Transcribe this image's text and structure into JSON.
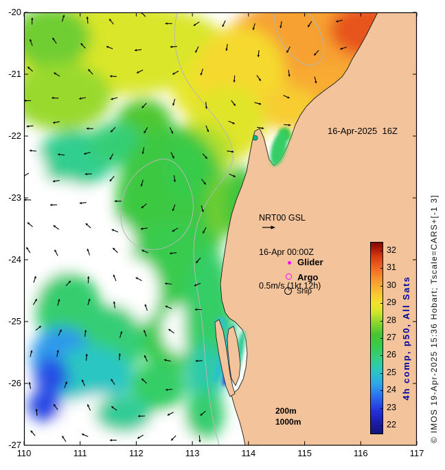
{
  "figure": {
    "land_color": "#f3c49b",
    "background_color": "#ffffff",
    "coast_color": "#1c1c1c",
    "contour_color": "#b6b6b6",
    "copyright": "© IMOS 19-Apr-2025 15:36 Hobart; Tscale=CARS+[-1 3]"
  },
  "annotations": {
    "datetime": "16-Apr-2025  16Z",
    "info": {
      "line1": "NRT00 GSL",
      "line2": "16-Apr 00:00Z",
      "line3": "0.5m/s (1kt 12h)"
    },
    "contour_labels": {
      "l200": "200m",
      "l1000": "1000m"
    }
  },
  "legend": {
    "items": [
      {
        "label": "Glider",
        "marker": "magenta-dot",
        "color": "#ff00ff"
      },
      {
        "label": "Argo",
        "marker": "magenta-open-circle",
        "color": "#ff00ff"
      },
      {
        "label": "Ship",
        "marker": "black-open-circle",
        "color": "#000000"
      }
    ]
  },
  "chart_data": {
    "type": "heatmap",
    "description": "Sea surface temperature (deg C) 4-hour composite map off Western Australia with surface current vectors, 200m/1000m bathymetry contours and observation platform legend",
    "x_range": [
      110,
      117
    ],
    "y_range": [
      -27,
      -20
    ],
    "x_ticks": [
      "110",
      "111",
      "112",
      "113",
      "114",
      "115",
      "116",
      "117"
    ],
    "y_ticks": [
      "-20",
      "-21",
      "-22",
      "-23",
      "-24",
      "-25",
      "-26",
      "-27"
    ],
    "grid": false,
    "colorbar": {
      "label": "4h comp, p50, All Sats",
      "label_color": "#0000a0",
      "ticks": [
        "32",
        "31",
        "30",
        "29",
        "28",
        "27",
        "26",
        "25",
        "24",
        "23",
        "22"
      ],
      "range": [
        21.5,
        32.5
      ],
      "stops": [
        [
          21.5,
          "#14147a"
        ],
        [
          22,
          "#1a1a9e"
        ],
        [
          22.8,
          "#2330dc"
        ],
        [
          23.6,
          "#2b6cee"
        ],
        [
          24.4,
          "#2ea8e8"
        ],
        [
          25.1,
          "#2cc6c2"
        ],
        [
          25.8,
          "#33cf86"
        ],
        [
          26.5,
          "#37cb4e"
        ],
        [
          27.2,
          "#46c432"
        ],
        [
          27.9,
          "#8ed62e"
        ],
        [
          28.5,
          "#d2e62c"
        ],
        [
          29,
          "#f4e42c"
        ],
        [
          29.6,
          "#f9c233"
        ],
        [
          30.3,
          "#f79b2f"
        ],
        [
          31,
          "#f26a24"
        ],
        [
          31.7,
          "#d83a12"
        ],
        [
          32.2,
          "#a51408"
        ],
        [
          32.5,
          "#7c0a04"
        ]
      ]
    },
    "sst_field": [
      {
        "lon": 111.65,
        "lat": -20.58,
        "rx": 2.0,
        "ry": 0.75,
        "t": 28.6
      },
      {
        "lon": 110.49,
        "lat": -20.41,
        "rx": 0.7,
        "ry": 0.5,
        "t": 27.6
      },
      {
        "lon": 110.67,
        "lat": -21.36,
        "rx": 0.9,
        "ry": 0.55,
        "t": 28.0
      },
      {
        "lon": 113.24,
        "lat": -21.24,
        "rx": 0.6,
        "ry": 0.5,
        "t": 28.8
      },
      {
        "lon": 112.14,
        "lat": -21.8,
        "rx": 0.5,
        "ry": 0.4,
        "t": 27.3
      },
      {
        "lon": 115.08,
        "lat": -20.69,
        "rx": 1.6,
        "ry": 0.95,
        "t": 30.2
      },
      {
        "lon": 116.2,
        "lat": -20.28,
        "rx": 0.75,
        "ry": 0.45,
        "t": 31.3
      },
      {
        "lon": 115.45,
        "lat": -21.36,
        "rx": 1.0,
        "ry": 0.5,
        "t": 30.0
      },
      {
        "lon": 113.86,
        "lat": -21.02,
        "rx": 0.8,
        "ry": 0.8,
        "t": 29.2
      },
      {
        "lon": 114.71,
        "lat": -21.56,
        "rx": 0.55,
        "ry": 0.35,
        "t": 29.4
      },
      {
        "lon": 113.61,
        "lat": -21.8,
        "rx": 0.7,
        "ry": 0.6,
        "t": 28.7
      },
      {
        "lon": 113.12,
        "lat": -22.3,
        "rx": 0.6,
        "ry": 0.5,
        "t": 28.2
      },
      {
        "lon": 110.92,
        "lat": -22.36,
        "rx": 0.7,
        "ry": 0.45,
        "t": 25.7
      },
      {
        "lon": 111.65,
        "lat": -22.13,
        "rx": 0.5,
        "ry": 0.35,
        "t": 26.0
      },
      {
        "lon": 112.63,
        "lat": -22.08,
        "rx": 0.25,
        "ry": 0.2,
        "t": 25.5
      },
      {
        "lon": 112.63,
        "lat": -23.13,
        "rx": 1.0,
        "ry": 1.3,
        "t": 26.8
      },
      {
        "lon": 112.88,
        "lat": -22.58,
        "rx": 0.4,
        "ry": 0.5,
        "t": 26.6
      },
      {
        "lon": 110.0,
        "lat": -22.58,
        "rx": 0.4,
        "ry": 0.4,
        "t": null
      },
      {
        "lon": 110.67,
        "lat": -23.47,
        "rx": 0.8,
        "ry": 0.75,
        "t": null
      },
      {
        "lon": 111.59,
        "lat": -23.8,
        "rx": 0.4,
        "ry": 0.45,
        "t": null
      },
      {
        "lon": 110.31,
        "lat": -24.24,
        "rx": 0.5,
        "ry": 0.5,
        "t": null
      },
      {
        "lon": 113.49,
        "lat": -23.13,
        "rx": 0.25,
        "ry": 0.5,
        "t": 27.6
      },
      {
        "lon": 112.69,
        "lat": -24.58,
        "rx": 0.95,
        "ry": 1.2,
        "t": 26.5
      },
      {
        "lon": 111.96,
        "lat": -24.52,
        "rx": 0.45,
        "ry": 0.55,
        "t": null
      },
      {
        "lon": 112.81,
        "lat": -25.13,
        "rx": 0.35,
        "ry": 0.4,
        "t": null
      },
      {
        "lon": 113.3,
        "lat": -25.02,
        "rx": 0.45,
        "ry": 1.2,
        "t": 26.2
      },
      {
        "lon": 113.86,
        "lat": -23.08,
        "rx": 0.3,
        "ry": 0.6,
        "t": 27.0
      },
      {
        "lon": 110.8,
        "lat": -24.8,
        "rx": 0.6,
        "ry": 0.6,
        "t": 26.1
      },
      {
        "lon": 111.53,
        "lat": -25.33,
        "rx": 0.6,
        "ry": 0.6,
        "t": 26.0
      },
      {
        "lon": 110.67,
        "lat": -25.58,
        "rx": 0.55,
        "ry": 0.5,
        "t": 24.2
      },
      {
        "lon": 111.22,
        "lat": -25.89,
        "rx": 0.7,
        "ry": 0.5,
        "t": 25.1
      },
      {
        "lon": 110.49,
        "lat": -25.89,
        "rx": 0.3,
        "ry": 0.3,
        "t": 23.2
      },
      {
        "lon": 113.24,
        "lat": -25.86,
        "rx": 0.35,
        "ry": 0.5,
        "t": 25.4
      },
      {
        "lon": 112.39,
        "lat": -26.04,
        "rx": 0.5,
        "ry": 0.4,
        "t": 26.2
      },
      {
        "lon": 111.41,
        "lat": -26.58,
        "rx": 0.8,
        "ry": 0.4,
        "t": null
      },
      {
        "lon": 112.63,
        "lat": -26.8,
        "rx": 0.6,
        "ry": 0.3,
        "t": null
      },
      {
        "lon": 110.37,
        "lat": -26.36,
        "rx": 0.3,
        "ry": 0.25,
        "t": 23.1
      },
      {
        "lon": 111.77,
        "lat": -26.49,
        "rx": 0.5,
        "ry": 0.3,
        "t": 25.6
      },
      {
        "lon": 113.22,
        "lat": -26.5,
        "rx": 0.35,
        "ry": 0.4,
        "t": 26.1
      }
    ],
    "inshore_water": [
      {
        "lon": 114.64,
        "lat": -21.98,
        "rx": 0.12,
        "ry": 0.12,
        "rot": 0,
        "t": 26.8
      },
      {
        "lon": 114.54,
        "lat": -22.2,
        "rx": 0.13,
        "ry": 0.29,
        "rot": 15,
        "t": 26.2
      },
      {
        "lon": 113.51,
        "lat": -25.04,
        "rx": 0.12,
        "ry": 0.12,
        "rot": 0,
        "t": 25.2
      },
      {
        "lon": 113.56,
        "lat": -25.52,
        "rx": 0.09,
        "ry": 0.5,
        "rot": 18,
        "t": 25.0
      },
      {
        "lon": 113.82,
        "lat": -25.56,
        "rx": 0.07,
        "ry": 0.42,
        "rot": 12,
        "t": 25.6
      },
      {
        "lon": 113.62,
        "lat": -25.87,
        "rx": 0.07,
        "ry": 0.18,
        "rot": 20,
        "t": 23.6
      }
    ],
    "markers": [
      {
        "type": "station",
        "lon": 114.12,
        "lat": -22.03,
        "color": "#12b286"
      }
    ],
    "vectors": {
      "style": "black-arrows"
    }
  }
}
